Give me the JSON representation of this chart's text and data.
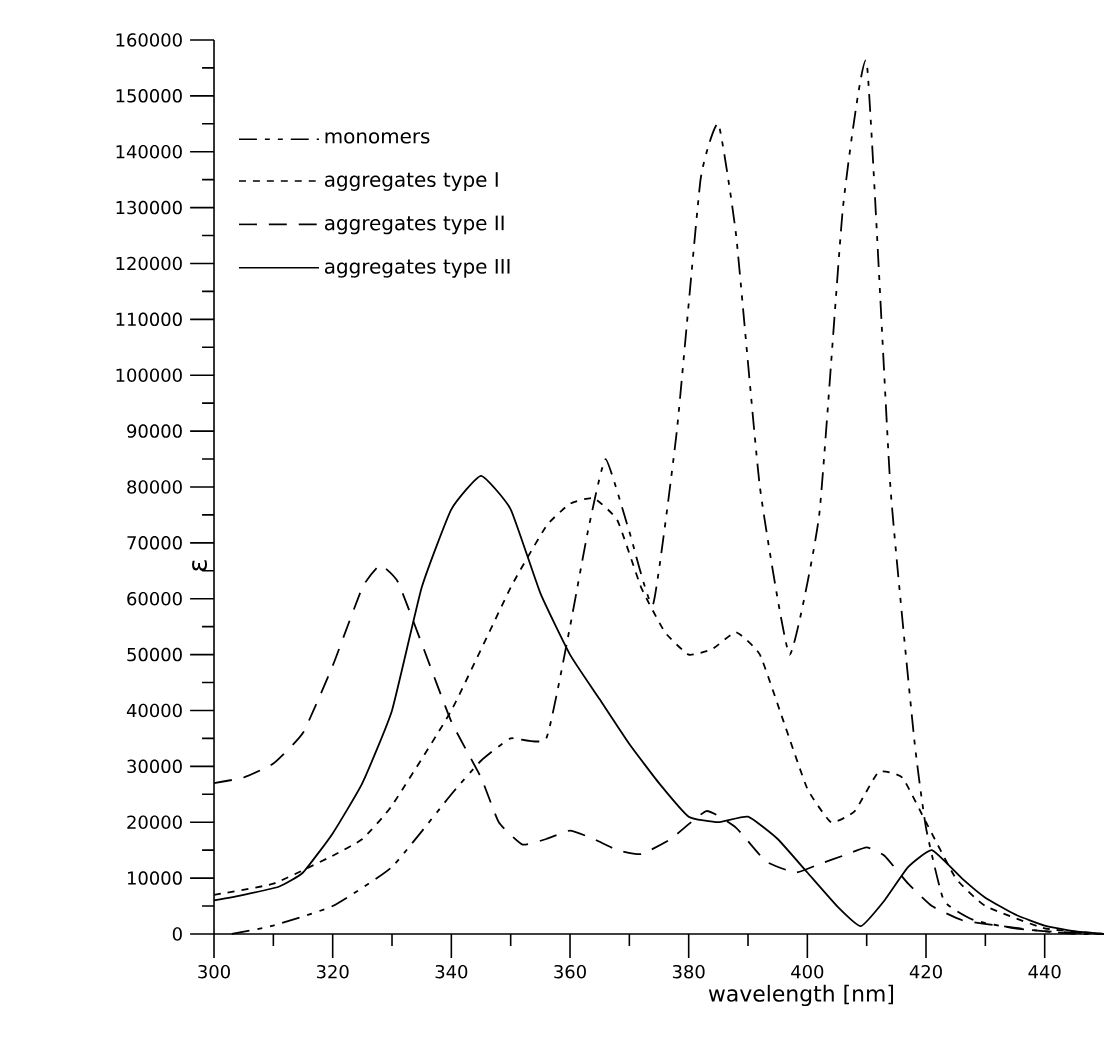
{
  "chart_data": {
    "type": "line",
    "xlabel": "wavelength [nm]",
    "ylabel": "ε",
    "xlim": [
      300,
      450
    ],
    "xticks": [
      300,
      320,
      340,
      360,
      380,
      400,
      420,
      440
    ],
    "ylim": [
      0,
      160000
    ],
    "yticks": [
      0,
      10000,
      20000,
      30000,
      40000,
      50000,
      60000,
      70000,
      80000,
      90000,
      100000,
      110000,
      120000,
      130000,
      140000,
      150000,
      160000
    ],
    "legend": "top left",
    "grid": false,
    "marker": "none",
    "series": [
      {
        "name": "monomers",
        "color": "#000000",
        "line_style": "dashdotted",
        "x": [
          303,
          310,
          320,
          330,
          340,
          345,
          350,
          356,
          360,
          363,
          366,
          370,
          374,
          378,
          382,
          385,
          388,
          392,
          397,
          402,
          406,
          410,
          414,
          418,
          420,
          423,
          428,
          435,
          445,
          450
        ],
        "values": [
          0,
          1500,
          5000,
          12000,
          25000,
          31000,
          35000,
          35000,
          55000,
          72000,
          85000,
          72000,
          59000,
          90000,
          135000,
          145000,
          125000,
          80000,
          50000,
          75000,
          130000,
          156000,
          80000,
          35000,
          19000,
          6000,
          2500,
          1000,
          0,
          0
        ]
      },
      {
        "name": "aggregates type I",
        "color": "#000000",
        "line_style": "dotted",
        "x": [
          300,
          310,
          320,
          325,
          330,
          340,
          350,
          356,
          360,
          364,
          368,
          372,
          376,
          380,
          384,
          388,
          392,
          396,
          400,
          404,
          408,
          412,
          416,
          420,
          425,
          430,
          440,
          450
        ],
        "values": [
          7000,
          9000,
          14000,
          17000,
          23000,
          40000,
          62000,
          73000,
          77000,
          78000,
          74000,
          62000,
          54000,
          50000,
          51000,
          54000,
          50000,
          38000,
          26000,
          20000,
          22000,
          29000,
          28000,
          20000,
          10000,
          5000,
          1000,
          0
        ]
      },
      {
        "name": "aggregates type II",
        "color": "#000000",
        "line_style": "dashed",
        "x": [
          300,
          305,
          310,
          315,
          320,
          325,
          328,
          331,
          335,
          340,
          345,
          348,
          352,
          356,
          360,
          364,
          368,
          372,
          377,
          383,
          388,
          393,
          398,
          402,
          406,
          410,
          413,
          417,
          421,
          426,
          432,
          440,
          450
        ],
        "values": [
          27000,
          28000,
          30500,
          36000,
          48000,
          62000,
          66000,
          63000,
          52000,
          38000,
          28000,
          20000,
          16000,
          17000,
          18500,
          17000,
          15000,
          14300,
          17000,
          22000,
          19000,
          13000,
          11000,
          12500,
          14000,
          15500,
          14000,
          9000,
          5000,
          2500,
          1500,
          500,
          0
        ]
      },
      {
        "name": "aggregates type III",
        "color": "#000000",
        "line_style": "solid",
        "x": [
          300,
          305,
          311,
          315,
          320,
          325,
          330,
          335,
          340,
          345,
          350,
          355,
          360,
          365,
          370,
          375,
          380,
          385,
          390,
          395,
          400,
          405,
          409,
          413,
          417,
          421,
          426,
          430,
          435,
          440,
          445,
          450
        ],
        "values": [
          6000,
          7000,
          8500,
          11000,
          18000,
          27000,
          40000,
          62000,
          76000,
          82000,
          76000,
          61000,
          50000,
          42000,
          34000,
          27000,
          21000,
          20000,
          21000,
          17000,
          11000,
          5000,
          1400,
          6000,
          12000,
          15000,
          10000,
          6500,
          3500,
          1500,
          500,
          0
        ]
      }
    ]
  }
}
